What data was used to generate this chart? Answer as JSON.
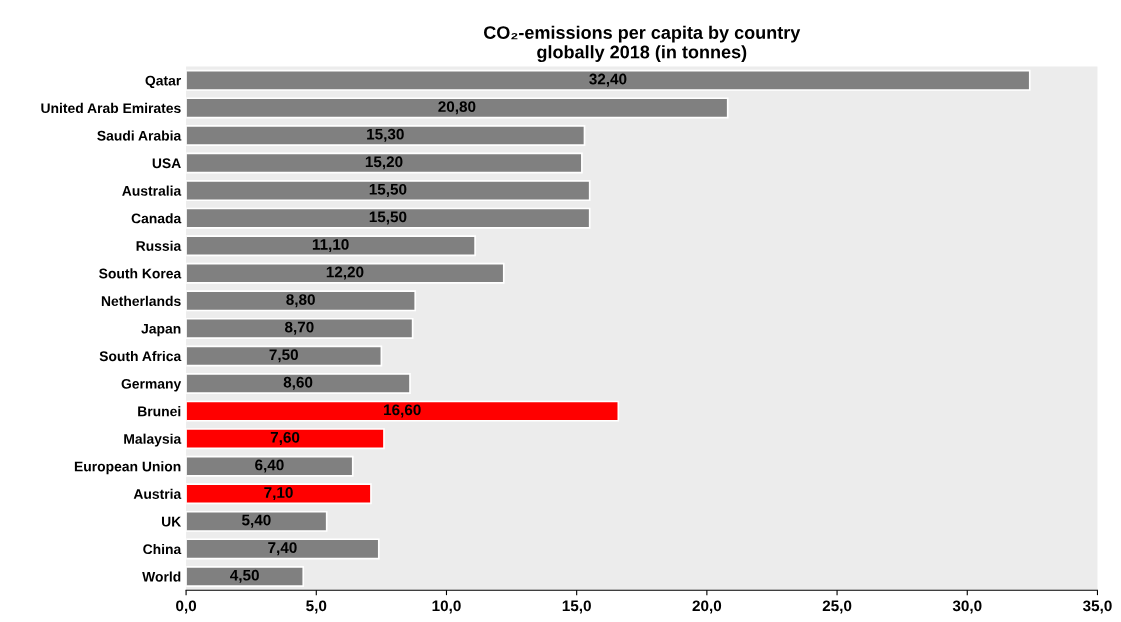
{
  "chart_data": {
    "type": "bar",
    "orientation": "horizontal",
    "title": "CO₂-emissions per capita by country\nglobally 2018 (in tonnes)",
    "categories": [
      "Qatar",
      "United Arab Emirates",
      "Saudi Arabia",
      "USA",
      "Australia",
      "Canada",
      "Russia",
      "South Korea",
      "Netherlands",
      "Japan",
      "South Africa",
      "Germany",
      "Brunei",
      "Malaysia",
      "European Union",
      "Austria",
      "UK",
      "China",
      "World"
    ],
    "values": [
      32.4,
      20.8,
      15.3,
      15.2,
      15.5,
      15.5,
      11.1,
      12.2,
      8.8,
      8.7,
      7.5,
      8.6,
      16.6,
      7.6,
      6.4,
      7.1,
      5.4,
      7.4,
      4.5
    ],
    "value_labels": [
      "32,40",
      "20,80",
      "15,30",
      "15,20",
      "15,50",
      "15,50",
      "11,10",
      "12,20",
      "8,80",
      "8,70",
      "7,50",
      "8,60",
      "16,60",
      "7,60",
      "6,40",
      "7,10",
      "5,40",
      "7,40",
      "4,50"
    ],
    "colors": [
      "#808080",
      "#808080",
      "#808080",
      "#808080",
      "#808080",
      "#808080",
      "#808080",
      "#808080",
      "#808080",
      "#808080",
      "#808080",
      "#808080",
      "#ff0000",
      "#ff0000",
      "#808080",
      "#ff0000",
      "#808080",
      "#808080",
      "#808080"
    ],
    "xlim": [
      0,
      35
    ],
    "xticks": [
      {
        "value": 0,
        "label": "0,0"
      },
      {
        "value": 5,
        "label": "5,0"
      },
      {
        "value": 10,
        "label": "10,0"
      },
      {
        "value": 15,
        "label": "15,0"
      },
      {
        "value": 20,
        "label": "20,0"
      },
      {
        "value": 25,
        "label": "25,0"
      },
      {
        "value": 30,
        "label": "30,0"
      },
      {
        "value": 35,
        "label": "35,0"
      }
    ],
    "grid": false,
    "legend": false
  }
}
